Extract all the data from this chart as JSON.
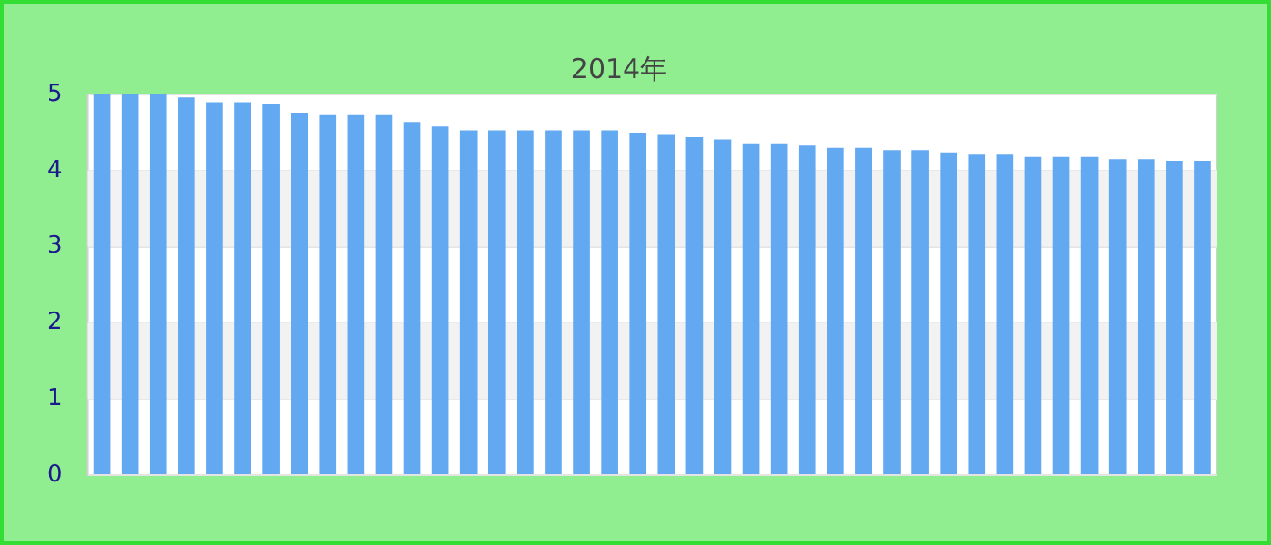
{
  "chart_data": {
    "type": "bar",
    "subtitle": "2014年",
    "categories": [
      null,
      null,
      null,
      null,
      null,
      null,
      null,
      null,
      null,
      null,
      null,
      null,
      null,
      null,
      null,
      null,
      null,
      null,
      null,
      null,
      null,
      null,
      null,
      null,
      null,
      null,
      null,
      null,
      null,
      null,
      null,
      null,
      null,
      null,
      null,
      null,
      null,
      null,
      null,
      null
    ],
    "values": [
      5.0,
      5.0,
      5.0,
      4.96,
      4.9,
      4.9,
      4.88,
      4.76,
      4.73,
      4.73,
      4.73,
      4.64,
      4.58,
      4.53,
      4.53,
      4.53,
      4.53,
      4.53,
      4.53,
      4.5,
      4.47,
      4.44,
      4.41,
      4.36,
      4.36,
      4.33,
      4.3,
      4.3,
      4.27,
      4.27,
      4.24,
      4.21,
      4.21,
      4.18,
      4.18,
      4.18,
      4.15,
      4.15,
      4.13,
      4.13
    ],
    "color": "#63a9f2",
    "ylim": [
      0,
      5
    ],
    "yticks": [
      0,
      1,
      2,
      3,
      4,
      5
    ],
    "grid": "y"
  }
}
